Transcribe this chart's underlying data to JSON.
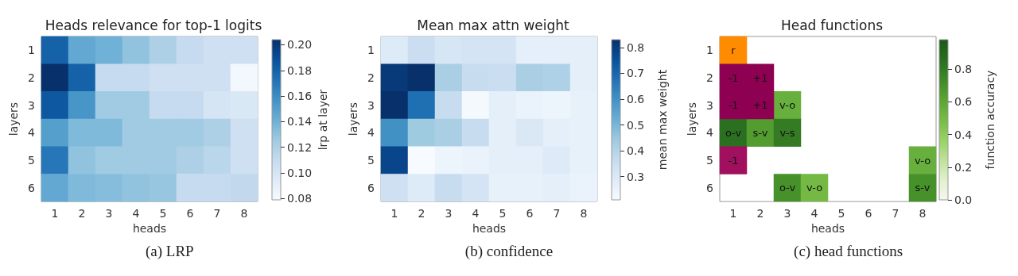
{
  "chart_data": [
    {
      "type": "heatmap",
      "title": "Heads relevance for top-1 logits",
      "xlabel": "heads",
      "ylabel": "layers",
      "clabel": "lrp at layer",
      "categories": [
        "1",
        "2",
        "3",
        "4",
        "5",
        "6",
        "7",
        "8"
      ],
      "y_categories": [
        "1",
        "2",
        "3",
        "4",
        "5",
        "6"
      ],
      "cells": [
        [
          0.18,
          0.145,
          0.14,
          0.13,
          0.12,
          0.11,
          0.105,
          0.105
        ],
        [
          0.204,
          0.18,
          0.11,
          0.11,
          0.105,
          0.105,
          0.105,
          0.082
        ],
        [
          0.185,
          0.155,
          0.125,
          0.125,
          0.11,
          0.11,
          0.1,
          0.098
        ],
        [
          0.15,
          0.135,
          0.135,
          0.125,
          0.125,
          0.125,
          0.12,
          0.105
        ],
        [
          0.17,
          0.13,
          0.125,
          0.125,
          0.125,
          0.12,
          0.115,
          0.105
        ],
        [
          0.145,
          0.135,
          0.133,
          0.13,
          0.128,
          0.11,
          0.11,
          0.112
        ]
      ],
      "clim": [
        0.079,
        0.204
      ],
      "cticks": [
        {
          "value": 0.08,
          "label": "0.08"
        },
        {
          "value": 0.1,
          "label": "0.10"
        },
        {
          "value": 0.12,
          "label": "0.12"
        },
        {
          "value": 0.14,
          "label": "0.14"
        },
        {
          "value": 0.16,
          "label": "0.16"
        },
        {
          "value": 0.18,
          "label": "0.18"
        },
        {
          "value": 0.2,
          "label": "0.20"
        }
      ],
      "annotations": [
        "(a) LRP"
      ]
    },
    {
      "type": "heatmap",
      "title": "Mean max attn weight",
      "xlabel": "heads",
      "ylabel": "layers",
      "clabel": "mean max weight",
      "categories": [
        "1",
        "2",
        "3",
        "4",
        "5",
        "6",
        "7",
        "8"
      ],
      "y_categories": [
        "1",
        "2",
        "3",
        "4",
        "5",
        "6"
      ],
      "cells": [
        [
          0.29,
          0.35,
          0.31,
          0.32,
          0.32,
          0.27,
          0.27,
          0.27
        ],
        [
          0.81,
          0.83,
          0.42,
          0.36,
          0.35,
          0.42,
          0.41,
          0.27
        ],
        [
          0.83,
          0.68,
          0.36,
          0.22,
          0.27,
          0.25,
          0.24,
          0.26
        ],
        [
          0.6,
          0.44,
          0.42,
          0.36,
          0.27,
          0.3,
          0.27,
          0.26
        ],
        [
          0.78,
          0.21,
          0.24,
          0.25,
          0.27,
          0.27,
          0.29,
          0.26
        ],
        [
          0.34,
          0.29,
          0.36,
          0.32,
          0.26,
          0.26,
          0.27,
          0.25
        ]
      ],
      "clim": [
        0.21,
        0.83
      ],
      "cticks": [
        0.3,
        0.4,
        0.5,
        0.6,
        0.7,
        0.8
      ],
      "annotations": [
        "(b) confidence"
      ]
    },
    {
      "type": "heatmap",
      "title": "Head functions",
      "xlabel": "heads",
      "ylabel": "layers",
      "clabel": "function accuracy",
      "categories": [
        "1",
        "2",
        "3",
        "4",
        "5",
        "6",
        "7",
        "8"
      ],
      "y_categories": [
        "1",
        "2",
        "3",
        "4",
        "5",
        "6"
      ],
      "cells": [
        [
          null,
          null,
          null,
          null,
          null,
          null,
          null,
          null
        ],
        [
          null,
          null,
          null,
          null,
          null,
          null,
          null,
          null
        ],
        [
          null,
          null,
          0.55,
          null,
          null,
          null,
          null,
          null
        ],
        [
          0.85,
          0.65,
          0.8,
          null,
          null,
          null,
          null,
          null
        ],
        [
          null,
          null,
          null,
          null,
          null,
          null,
          null,
          0.55
        ],
        [
          null,
          null,
          0.7,
          0.5,
          null,
          null,
          null,
          0.7
        ]
      ],
      "cell_labels": [
        [
          "r",
          null,
          null,
          null,
          null,
          null,
          null,
          null
        ],
        [
          "-1",
          "+1",
          null,
          null,
          null,
          null,
          null,
          null
        ],
        [
          "-1",
          "+1",
          "v-o",
          null,
          null,
          null,
          null,
          null
        ],
        [
          "o-v",
          "s-v",
          "v-s",
          null,
          null,
          null,
          null,
          null
        ],
        [
          "-1",
          null,
          null,
          null,
          null,
          null,
          null,
          "v-o"
        ],
        [
          null,
          null,
          "o-v",
          "v-o",
          null,
          null,
          null,
          "s-v"
        ]
      ],
      "colors": [
        [
          "#ff8c00",
          null,
          null,
          null,
          null,
          null,
          null,
          null
        ],
        [
          "#8e0152",
          "#8e0152",
          null,
          null,
          null,
          null,
          null,
          null
        ],
        [
          "#8e0152",
          "#8e0152",
          null,
          null,
          null,
          null,
          null,
          null
        ],
        [
          null,
          null,
          null,
          null,
          null,
          null,
          null,
          null
        ],
        [
          "#a0105e",
          null,
          null,
          null,
          null,
          null,
          null,
          null
        ],
        [
          null,
          null,
          null,
          null,
          null,
          null,
          null,
          null
        ]
      ],
      "clim": [
        0,
        0.98
      ],
      "cticks": [
        {
          "value": 0,
          "label": "0.0"
        },
        {
          "value": 0.2,
          "label": "0.2"
        },
        {
          "value": 0.4,
          "label": "0.4"
        },
        {
          "value": 0.6,
          "label": "0.6"
        },
        {
          "value": 0.8,
          "label": "0.8"
        }
      ],
      "annotations": [
        "(c) head functions"
      ]
    }
  ]
}
